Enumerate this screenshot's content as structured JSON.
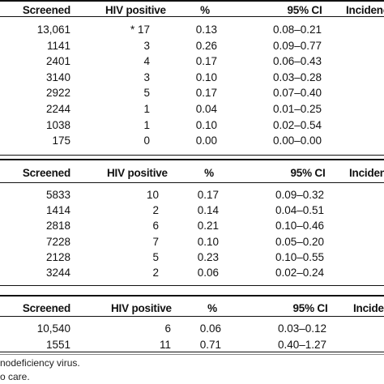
{
  "tables": [
    {
      "headers": {
        "screened": "Screened",
        "hiv": "HIV positive",
        "pct": "%",
        "ci": "95% CI",
        "inc": "Incidence"
      },
      "rows": [
        {
          "screened": "13,061",
          "hiv": "* 17",
          "pct": "0.13",
          "ci": "0.08–0.21"
        },
        {
          "screened": "1141",
          "hiv": "3",
          "pct": "0.26",
          "ci": "0.09–0.77"
        },
        {
          "screened": "2401",
          "hiv": "4",
          "pct": "0.17",
          "ci": "0.06–0.43"
        },
        {
          "screened": "3140",
          "hiv": "3",
          "pct": "0.10",
          "ci": "0.03–0.28"
        },
        {
          "screened": "2922",
          "hiv": "5",
          "pct": "0.17",
          "ci": "0.07–0.40"
        },
        {
          "screened": "2244",
          "hiv": "1",
          "pct": "0.04",
          "ci": "0.01–0.25"
        },
        {
          "screened": "1038",
          "hiv": "1",
          "pct": "0.10",
          "ci": "0.02–0.54"
        },
        {
          "screened": "175",
          "hiv": "0",
          "pct": "0.00",
          "ci": "0.00–0.00"
        }
      ]
    },
    {
      "headers": {
        "screened": "Screened",
        "hiv": "HIV positive",
        "pct": "%",
        "ci": "95% CI",
        "inc": "Incidence"
      },
      "rows": [
        {
          "screened": "5833",
          "hiv": "10",
          "pct": "0.17",
          "ci": "0.09–0.32"
        },
        {
          "screened": "1414",
          "hiv": "2",
          "pct": "0.14",
          "ci": "0.04–0.51"
        },
        {
          "screened": "2818",
          "hiv": "6",
          "pct": "0.21",
          "ci": "0.10–0.46"
        },
        {
          "screened": "7228",
          "hiv": "7",
          "pct": "0.10",
          "ci": "0.05–0.20"
        },
        {
          "screened": "2128",
          "hiv": "5",
          "pct": "0.23",
          "ci": "0.10–0.55"
        },
        {
          "screened": "3244",
          "hiv": "2",
          "pct": "0.06",
          "ci": "0.02–0.24"
        }
      ]
    },
    {
      "headers": {
        "screened": "Screened",
        "hiv": "HIV positive",
        "pct": "%",
        "ci": "95% CI",
        "inc": "Incidence"
      },
      "rows": [
        {
          "screened": "10,540",
          "hiv": "6",
          "pct": "0.06",
          "ci": "0.03–0.12"
        },
        {
          "screened": "1551",
          "hiv": "11",
          "pct": "0.71",
          "ci": "0.40–1.27"
        }
      ]
    }
  ],
  "footnotes": [
    "nodeficiency virus.",
    "o care."
  ]
}
